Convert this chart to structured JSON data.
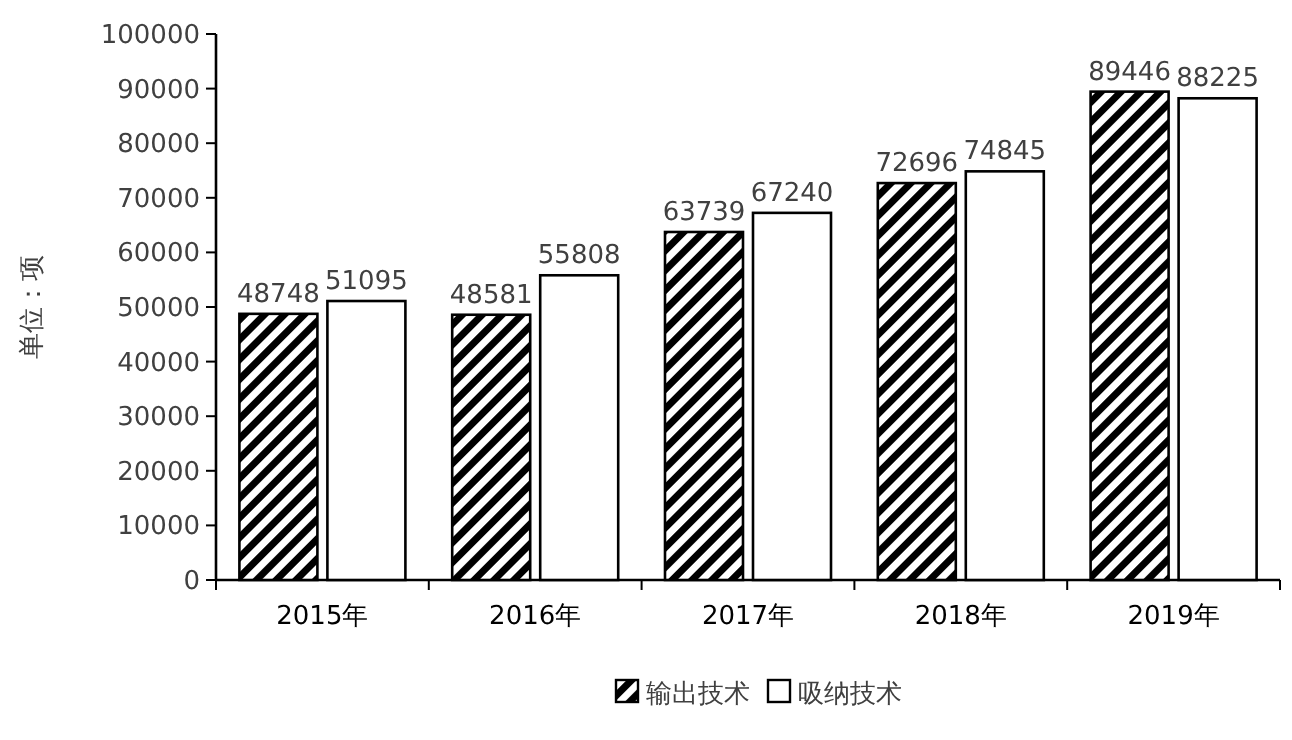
{
  "chart_data": {
    "type": "bar",
    "ylabel": "单位：项",
    "categories": [
      "2015年",
      "2016年",
      "2017年",
      "2018年",
      "2019年"
    ],
    "series": [
      {
        "name": "输出技术",
        "color": "#000000",
        "values": [
          48748,
          48581,
          63739,
          72696,
          89446
        ]
      },
      {
        "name": "吸纳技术",
        "color": "#ffffff",
        "values": [
          51095,
          55808,
          67240,
          74845,
          88225
        ]
      }
    ],
    "ylim": [
      0,
      100000
    ],
    "yticks": [
      0,
      10000,
      20000,
      30000,
      40000,
      50000,
      60000,
      70000,
      80000,
      90000,
      100000
    ],
    "data_labels": true,
    "legend": "bottom"
  }
}
